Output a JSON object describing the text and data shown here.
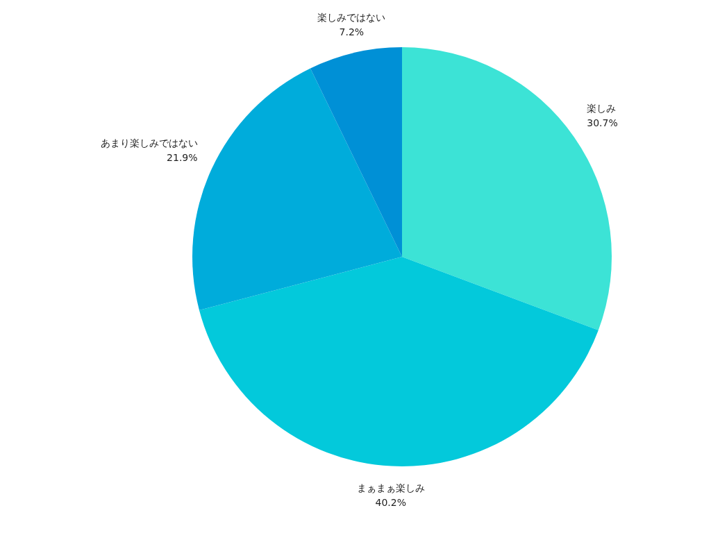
{
  "chart_data": {
    "type": "pie",
    "categories": [
      "楽しみ",
      "まぁまぁ楽しみ",
      "あまり楽しみではない",
      "楽しみではない"
    ],
    "values": [
      30.7,
      40.2,
      21.9,
      7.2
    ],
    "value_labels": [
      "30.7%",
      "40.2%",
      "21.9%",
      "7.2%"
    ],
    "colors": [
      "#3ce3d6",
      "#03c9db",
      "#00acdb",
      "#0090d6"
    ],
    "legend": false
  }
}
